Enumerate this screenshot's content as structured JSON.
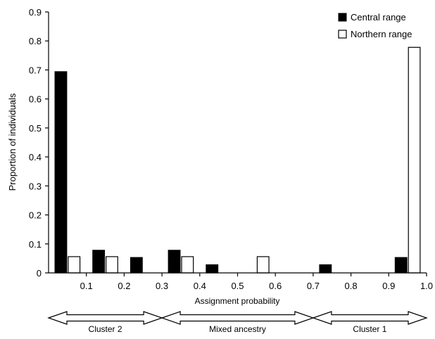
{
  "chart_data": {
    "type": "bar",
    "categories": [
      "0-0.1",
      "0.1-0.2",
      "0.2-0.3",
      "0.3-0.4",
      "0.4-0.5",
      "0.5-0.6",
      "0.6-0.7",
      "0.7-0.8",
      "0.8-0.9",
      "0.9-1.0"
    ],
    "series": [
      {
        "name": "Central range",
        "color": "#000000",
        "values": [
          0.694,
          0.078,
          0.053,
          0.078,
          0.028,
          0,
          0,
          0.028,
          0,
          0.053
        ]
      },
      {
        "name": "Northern range",
        "color": "#ffffff",
        "values": [
          0.056,
          0.056,
          0,
          0.056,
          0,
          0.056,
          0,
          0,
          0,
          0.778
        ]
      }
    ],
    "xlabel": "Assignment probability",
    "ylabel": "Proportion of individuals",
    "ylim": [
      0,
      0.9
    ],
    "yticks": [
      "0",
      "0.1",
      "0.2",
      "0.3",
      "0.4",
      "0.5",
      "0.6",
      "0.7",
      "0.8",
      "0.9"
    ],
    "xticks": [
      "0.1",
      "0.2",
      "0.3",
      "0.4",
      "0.5",
      "0.6",
      "0.7",
      "0.8",
      "0.9",
      "1.0"
    ],
    "legend": {
      "position": "top-right"
    },
    "grid": false,
    "ranges": [
      {
        "label": "Cluster 2",
        "from": 0,
        "to": 0.3
      },
      {
        "label": "Mixed ancestry",
        "from": 0.3,
        "to": 0.7
      },
      {
        "label": "Cluster 1",
        "from": 0.7,
        "to": 1.0
      }
    ]
  }
}
